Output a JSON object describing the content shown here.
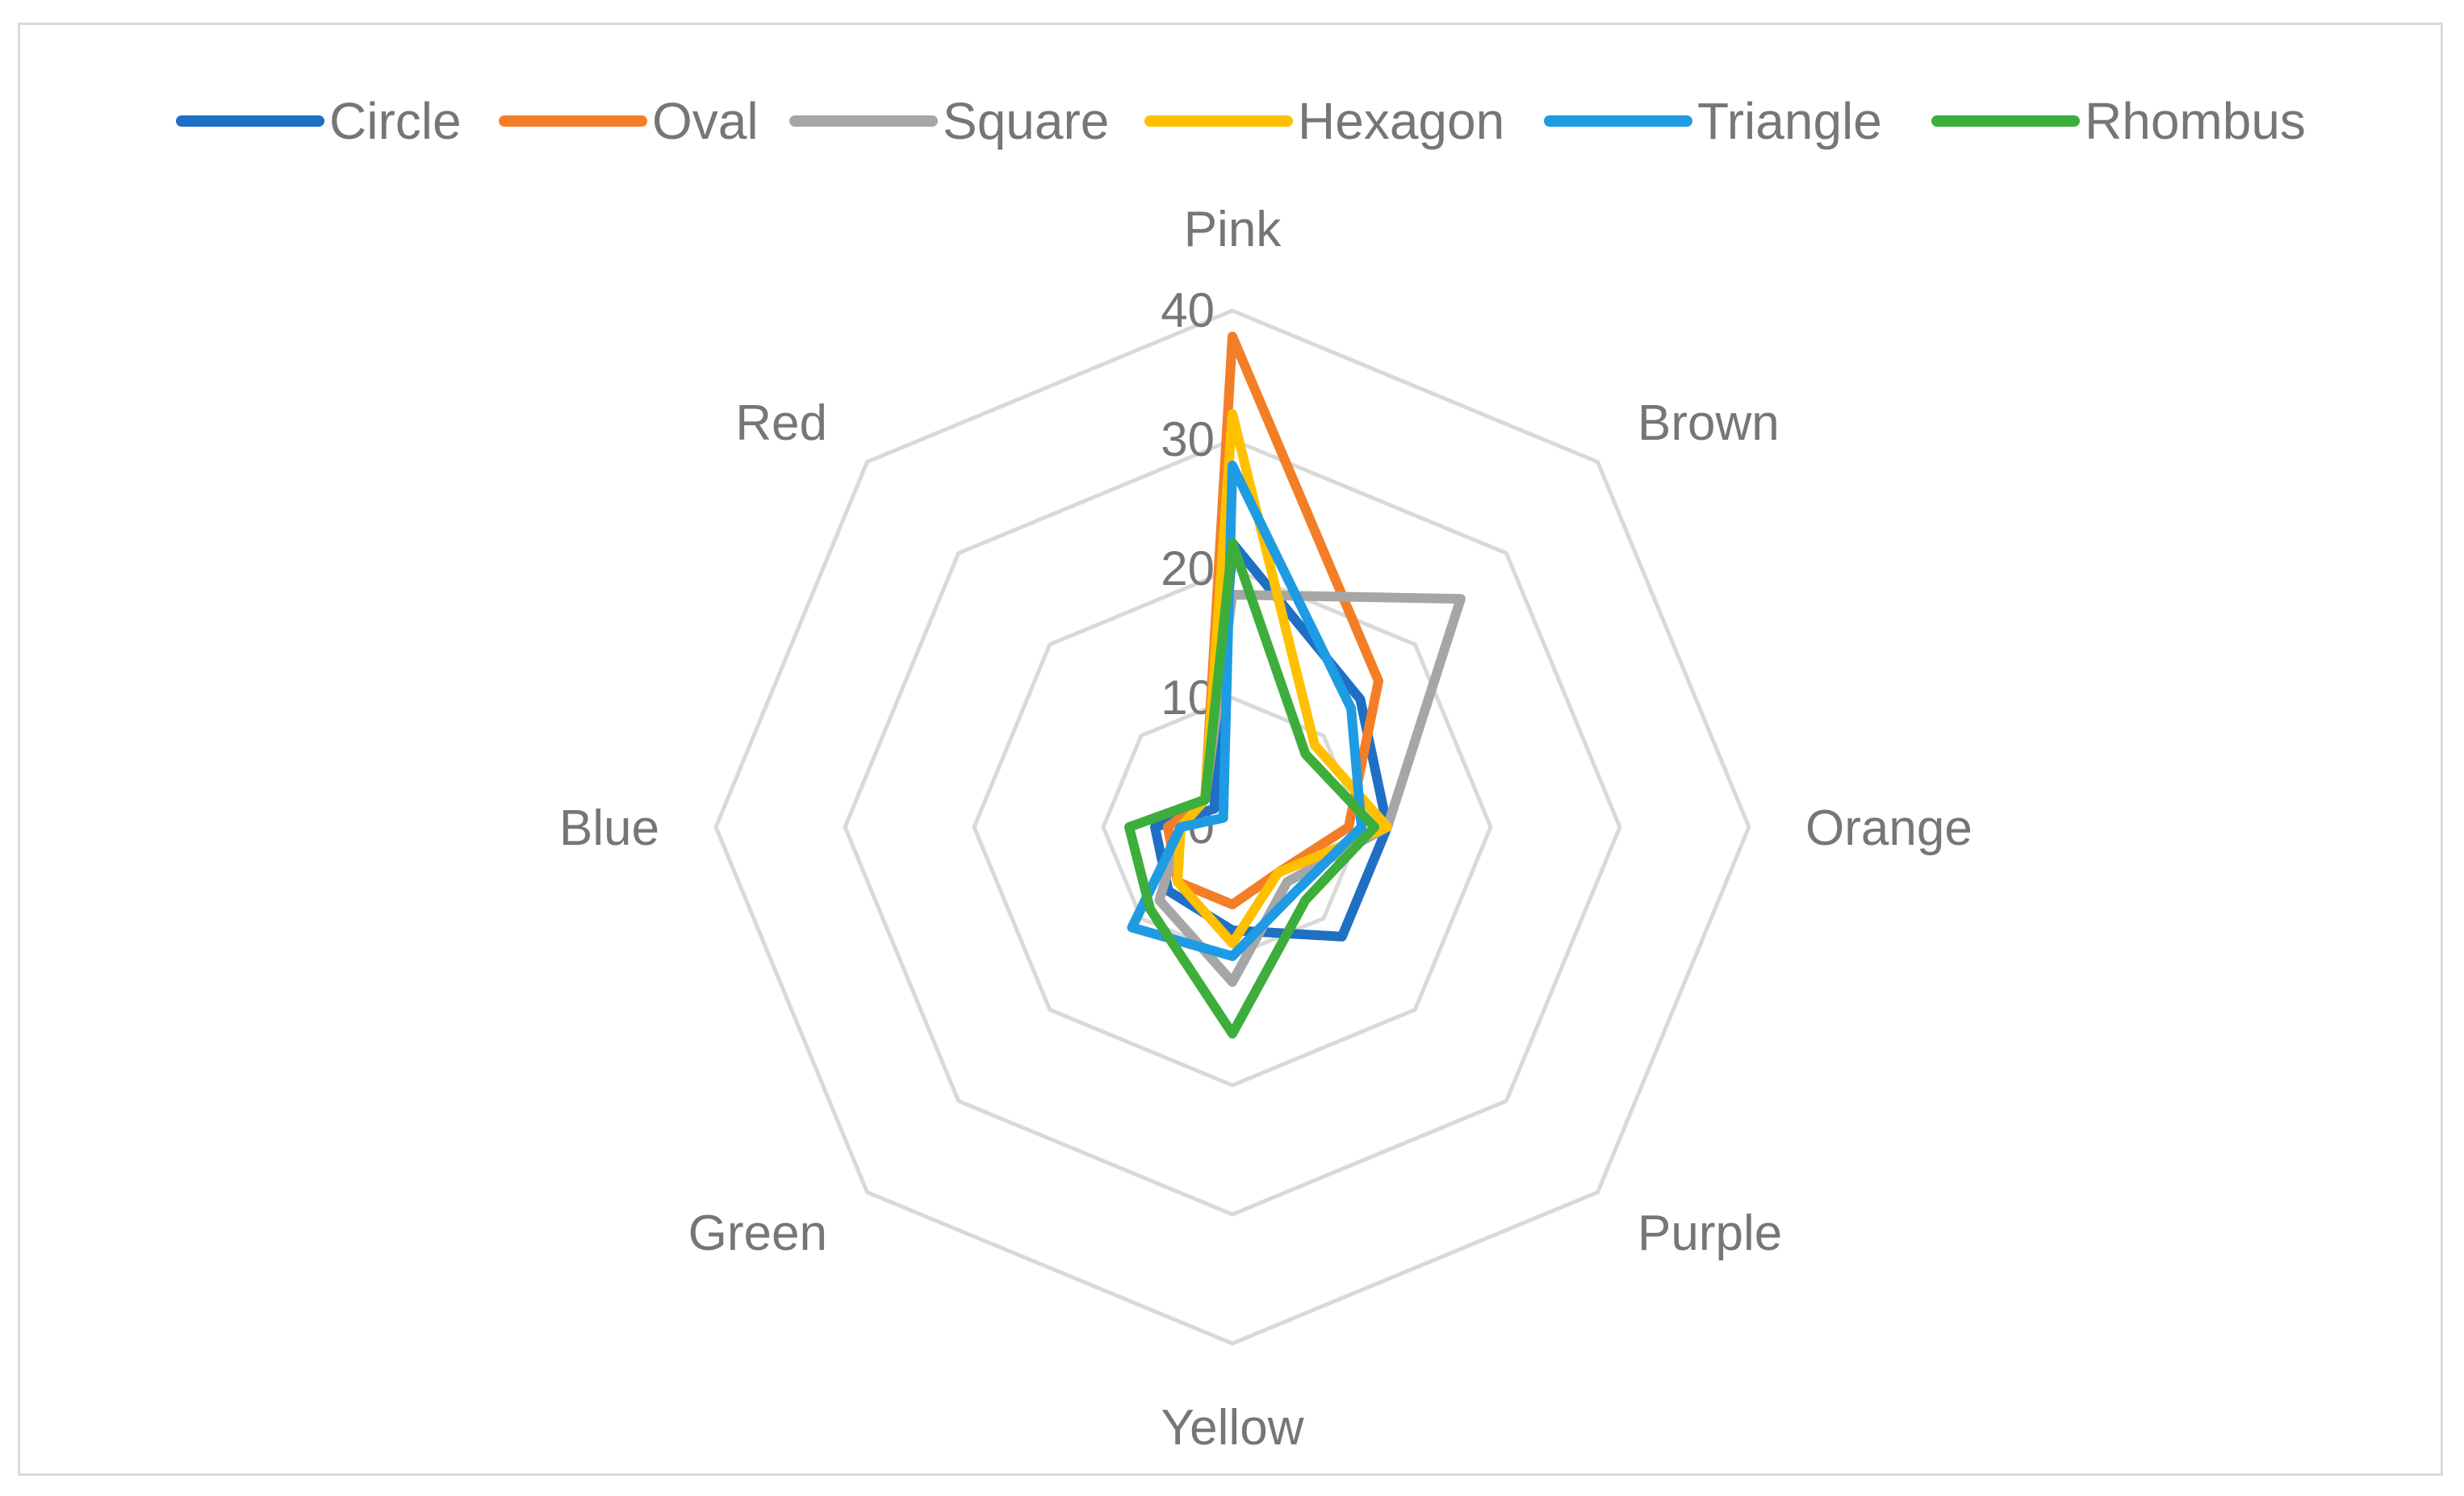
{
  "chart_data": {
    "type": "radar",
    "categories": [
      "Pink",
      "Brown",
      "Orange",
      "Purple",
      "Yellow",
      "Green",
      "Blue",
      "Red"
    ],
    "rlim": [
      0,
      40
    ],
    "ticks": [
      "0",
      "10",
      "20",
      "30",
      "40"
    ],
    "tick_values": [
      0,
      10,
      20,
      30,
      40
    ],
    "grid": true,
    "legend_position": "top",
    "series": [
      {
        "name": "Circle",
        "color": "#1f6fc4",
        "values": [
          22,
          14,
          12,
          12,
          8,
          7,
          6,
          2
        ]
      },
      {
        "name": "Oval",
        "color": "#f47e27",
        "values": [
          38,
          16,
          9,
          5,
          6,
          6,
          5,
          3
        ]
      },
      {
        "name": "Square",
        "color": "#a6a6a6",
        "values": [
          18,
          25,
          12,
          6,
          12,
          8,
          4,
          3
        ]
      },
      {
        "name": "Hexagon",
        "color": "#ffc000",
        "values": [
          32,
          9,
          12,
          5,
          9,
          6,
          4,
          3
        ]
      },
      {
        "name": "Triangle",
        "color": "#1e9be2",
        "values": [
          28,
          13,
          10,
          7,
          10,
          11,
          4,
          1
        ]
      },
      {
        "name": "Rhombus",
        "color": "#3dae3b",
        "values": [
          22,
          8,
          11,
          8,
          16,
          9,
          8,
          3
        ]
      }
    ]
  }
}
